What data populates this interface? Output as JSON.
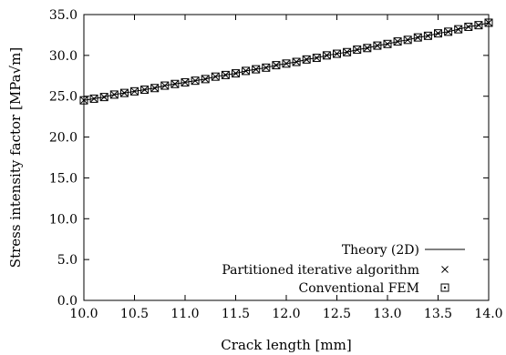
{
  "chart_data": {
    "type": "line",
    "xlabel": "Crack length [mm]",
    "ylabel": "Stress intensity factor [MPa√m]",
    "xlim": [
      10.0,
      14.0
    ],
    "ylim": [
      0.0,
      35.0
    ],
    "x_ticks": [
      "10.0",
      "10.5",
      "11.0",
      "11.5",
      "12.0",
      "12.5",
      "13.0",
      "13.5",
      "14.0"
    ],
    "y_ticks": [
      "0.0",
      "5.0",
      "10.0",
      "15.0",
      "20.0",
      "25.0",
      "30.0",
      "35.0"
    ],
    "grid": false,
    "legend_position": "bottom-right",
    "x": [
      10.0,
      10.1,
      10.2,
      10.3,
      10.4,
      10.5,
      10.6,
      10.7,
      10.8,
      10.9,
      11.0,
      11.1,
      11.2,
      11.3,
      11.4,
      11.5,
      11.6,
      11.7,
      11.8,
      11.9,
      12.0,
      12.1,
      12.2,
      12.3,
      12.4,
      12.5,
      12.6,
      12.7,
      12.8,
      12.9,
      13.0,
      13.1,
      13.2,
      13.3,
      13.4,
      13.5,
      13.6,
      13.7,
      13.8,
      13.9,
      14.0
    ],
    "series": [
      {
        "name": "Theory (2D)",
        "marker": "line",
        "values": [
          24.5,
          24.7,
          24.9,
          25.2,
          25.4,
          25.6,
          25.8,
          26.0,
          26.3,
          26.5,
          26.7,
          26.9,
          27.1,
          27.4,
          27.6,
          27.8,
          28.1,
          28.3,
          28.5,
          28.8,
          29.0,
          29.2,
          29.5,
          29.7,
          30.0,
          30.2,
          30.4,
          30.7,
          30.9,
          31.2,
          31.4,
          31.7,
          31.9,
          32.2,
          32.4,
          32.7,
          32.9,
          33.2,
          33.5,
          33.7,
          34.0
        ]
      },
      {
        "name": "Partitioned iterative algorithm",
        "marker": "cross",
        "values": [
          24.5,
          24.7,
          24.9,
          25.2,
          25.4,
          25.6,
          25.8,
          26.0,
          26.3,
          26.5,
          26.7,
          26.9,
          27.1,
          27.4,
          27.6,
          27.8,
          28.1,
          28.3,
          28.5,
          28.8,
          29.0,
          29.2,
          29.5,
          29.7,
          30.0,
          30.2,
          30.4,
          30.7,
          30.9,
          31.2,
          31.4,
          31.7,
          31.9,
          32.2,
          32.4,
          32.7,
          32.9,
          33.2,
          33.5,
          33.7,
          34.0
        ]
      },
      {
        "name": "Conventional FEM",
        "marker": "boxed-dot",
        "values": [
          24.5,
          24.7,
          24.9,
          25.2,
          25.4,
          25.6,
          25.8,
          26.0,
          26.3,
          26.5,
          26.7,
          26.9,
          27.1,
          27.4,
          27.6,
          27.8,
          28.1,
          28.3,
          28.5,
          28.8,
          29.0,
          29.2,
          29.5,
          29.7,
          30.0,
          30.2,
          30.4,
          30.7,
          30.9,
          31.2,
          31.4,
          31.7,
          31.9,
          32.2,
          32.4,
          32.7,
          32.9,
          33.2,
          33.5,
          33.7,
          34.0
        ]
      }
    ]
  }
}
